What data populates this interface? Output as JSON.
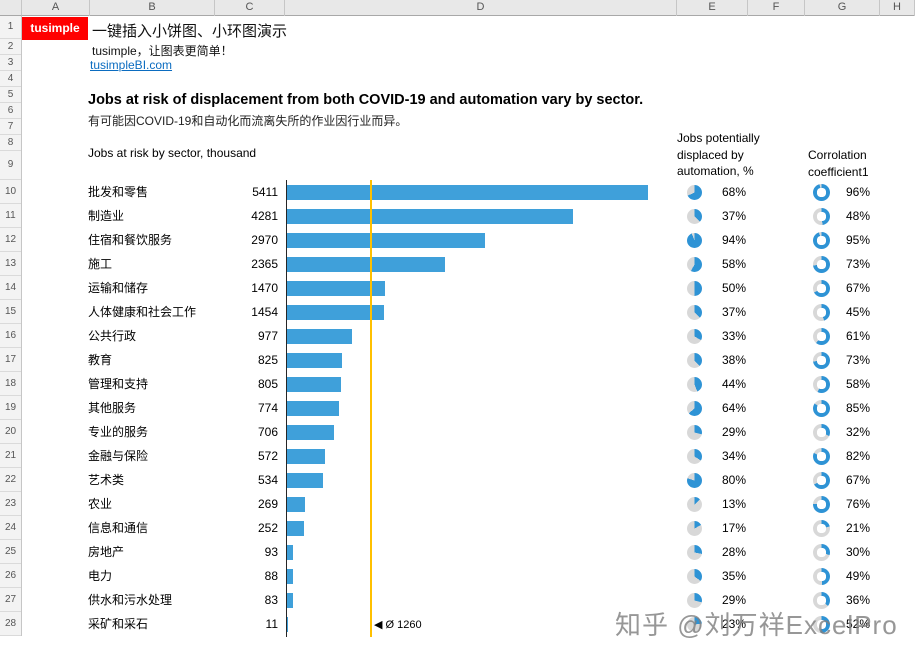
{
  "watermark": "知乎 @刘万祥ExcelPro",
  "spreadsheet": {
    "column_headers": [
      "A",
      "B",
      "C",
      "D",
      "E",
      "F",
      "G",
      "H"
    ],
    "row_count": 28
  },
  "branding": {
    "logo": "tusimple",
    "headline": "一键插入小饼图、小环图演示",
    "tagline": "tusimple，让图表更简单！",
    "link": "tusimpleBI.com"
  },
  "chart": {
    "title": "Jobs at risk of displacement from both COVID-19 and automation vary by sector.",
    "subtitle": "有可能因COVID-19和自动化而流离失所的作业因行业而异。",
    "bar_header": "Jobs at risk by sector, thousand",
    "pie_header_lines": [
      "Jobs potentially",
      "displaced by",
      "automation, %"
    ],
    "donut_header_lines": [
      "Corrolation",
      "coefficient1"
    ],
    "average_marker": "◀ Ø 1260",
    "average_value": 1260,
    "colors": {
      "bar": "#3FA0DA",
      "pie": "#2E93D5",
      "remainder": "#D8D8D8",
      "average_line": "#FFC000",
      "link": "#0B6CC0",
      "logo_bg": "#FF0000"
    }
  },
  "chart_data": {
    "type": "bar",
    "title": "Jobs at risk of displacement from both COVID-19 and automation vary by sector.",
    "xlabel": "Jobs at risk by sector, thousand",
    "xlim": [
      0,
      5411
    ],
    "annotations": [
      "Ø 1260 average reference line"
    ],
    "categories": [
      "批发和零售",
      "制造业",
      "住宿和餐饮服务",
      "施工",
      "运输和储存",
      "人体健康和社会工作",
      "公共行政",
      "教育",
      "管理和支持",
      "其他服务",
      "专业的服务",
      "金融与保险",
      "艺术类",
      "农业",
      "信息和通信",
      "房地产",
      "电力",
      "供水和污水处理",
      "采矿和采石"
    ],
    "series": [
      {
        "name": "Jobs at risk by sector, thousand",
        "values": [
          5411,
          4281,
          2970,
          2365,
          1470,
          1454,
          977,
          825,
          805,
          774,
          706,
          572,
          534,
          269,
          252,
          93,
          88,
          83,
          11
        ]
      },
      {
        "name": "Jobs potentially displaced by automation, %",
        "values": [
          68,
          37,
          94,
          58,
          50,
          37,
          33,
          38,
          44,
          64,
          29,
          34,
          80,
          13,
          17,
          28,
          35,
          29,
          23
        ]
      },
      {
        "name": "Corrolation coefficient",
        "values": [
          96,
          48,
          95,
          73,
          67,
          45,
          61,
          73,
          58,
          85,
          32,
          82,
          67,
          76,
          21,
          30,
          49,
          36,
          52
        ]
      }
    ]
  }
}
